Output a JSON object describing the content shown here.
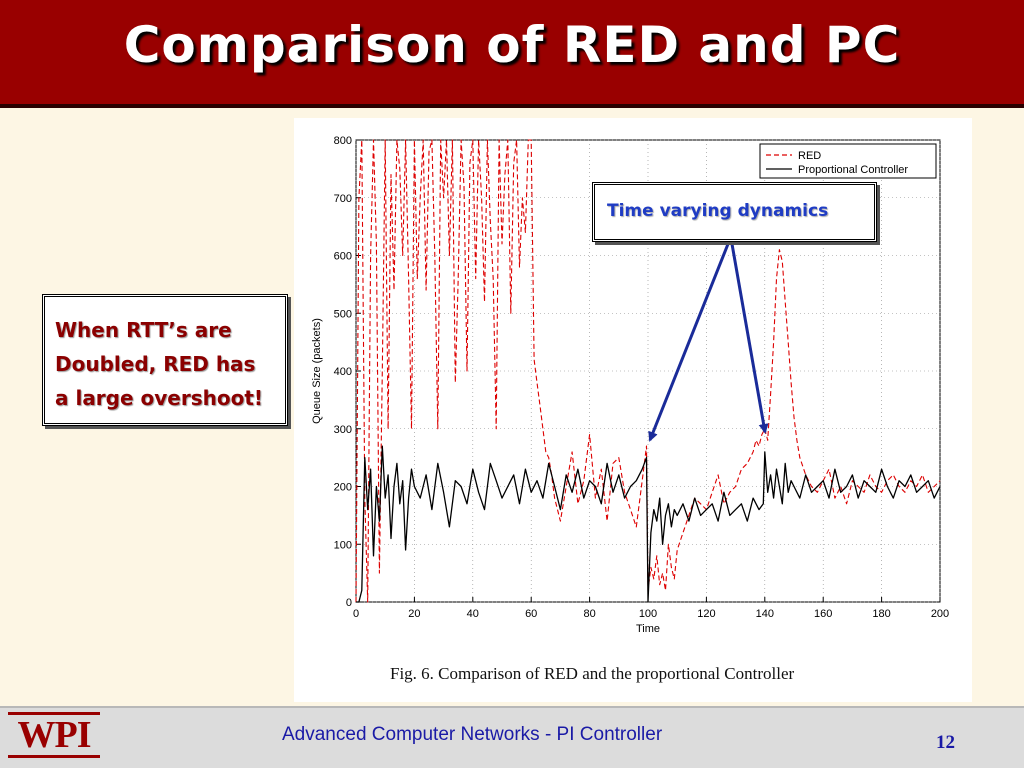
{
  "slide": {
    "title": "Comparison of RED and PC",
    "callout_left": [
      "When RTT’s are",
      "Doubled, RED has",
      "a large overshoot!"
    ],
    "callout_right": "Time varying dynamics",
    "caption": "Fig. 6.  Comparison of RED and the proportional Controller",
    "footer_text": "Advanced Computer Networks -  PI Controller",
    "page_number": "12",
    "logo_text": "WPI"
  },
  "colors": {
    "title_bg": "#990000",
    "title_text": "#ffffff",
    "callout_left_text": "#8b0000",
    "callout_right_text": "#1f3cc4",
    "red_series": "#dd0000",
    "pc_series": "#000000",
    "arrow": "#1a2b99"
  },
  "chart_data": {
    "type": "line",
    "xlabel": "Time",
    "ylabel": "Queue Size (packets)",
    "xlim": [
      0,
      200
    ],
    "ylim": [
      0,
      800
    ],
    "xticks": [
      0,
      20,
      40,
      60,
      80,
      100,
      120,
      140,
      160,
      180,
      200
    ],
    "yticks": [
      0,
      100,
      200,
      300,
      400,
      500,
      600,
      700,
      800
    ],
    "grid": "dotted",
    "legend_position": "top-right",
    "series": [
      {
        "name": "RED",
        "style": "dashed",
        "color": "#dd0000",
        "x": [
          0,
          1,
          2,
          3,
          4,
          5,
          6,
          7,
          8,
          9,
          10,
          11,
          12,
          13,
          14,
          15,
          16,
          17,
          18,
          19,
          20,
          21,
          22,
          23,
          24,
          25,
          26,
          27,
          28,
          29,
          30,
          31,
          32,
          33,
          34,
          35,
          36,
          37,
          38,
          39,
          40,
          41,
          42,
          43,
          44,
          45,
          46,
          47,
          48,
          49,
          50,
          51,
          52,
          53,
          54,
          55,
          56,
          57,
          58,
          59,
          60,
          61,
          62,
          63,
          64,
          65,
          66,
          67,
          68,
          69,
          70,
          72,
          74,
          76,
          78,
          80,
          82,
          84,
          86,
          88,
          90,
          92,
          94,
          96,
          98,
          99.5,
          100,
          101,
          102,
          103,
          104,
          105,
          106,
          107,
          108,
          109,
          110,
          112,
          114,
          116,
          118,
          120,
          122,
          124,
          126,
          128,
          130,
          132,
          134,
          136,
          137,
          138,
          139,
          140,
          141,
          142,
          143,
          144,
          145,
          146,
          147,
          148,
          149,
          150,
          151,
          152,
          154,
          156,
          158,
          160,
          162,
          164,
          166,
          168,
          170,
          172,
          174,
          176,
          178,
          180,
          182,
          184,
          186,
          188,
          190,
          192,
          194,
          196,
          198,
          200
        ],
        "y": [
          0,
          700,
          800,
          180,
          0,
          600,
          800,
          620,
          50,
          400,
          800,
          300,
          740,
          540,
          800,
          750,
          600,
          800,
          560,
          300,
          800,
          560,
          700,
          800,
          540,
          780,
          800,
          600,
          300,
          800,
          700,
          800,
          600,
          800,
          380,
          560,
          800,
          720,
          400,
          760,
          800,
          560,
          800,
          700,
          520,
          800,
          660,
          560,
          300,
          800,
          620,
          740,
          800,
          500,
          760,
          800,
          580,
          700,
          640,
          800,
          800,
          420,
          380,
          340,
          300,
          260,
          250,
          220,
          180,
          160,
          140,
          200,
          260,
          170,
          210,
          290,
          180,
          230,
          140,
          240,
          250,
          190,
          160,
          130,
          210,
          270,
          20,
          60,
          40,
          80,
          30,
          50,
          20,
          100,
          60,
          40,
          90,
          120,
          150,
          180,
          170,
          160,
          190,
          220,
          170,
          190,
          200,
          230,
          240,
          260,
          280,
          270,
          290,
          300,
          280,
          360,
          450,
          560,
          610,
          590,
          520,
          450,
          380,
          320,
          280,
          250,
          220,
          200,
          190,
          210,
          230,
          180,
          200,
          170,
          210,
          200,
          190,
          220,
          200,
          190,
          210,
          220,
          200,
          190,
          210,
          200,
          220,
          190,
          200,
          210
        ]
      },
      {
        "name": "Proportional Controller",
        "style": "solid",
        "color": "#000000",
        "x": [
          0,
          1,
          2,
          3,
          4,
          5,
          6,
          7,
          8,
          9,
          10,
          11,
          12,
          13,
          14,
          15,
          16,
          17,
          18,
          19,
          20,
          22,
          24,
          26,
          28,
          30,
          32,
          34,
          36,
          38,
          40,
          42,
          44,
          46,
          48,
          50,
          52,
          54,
          56,
          58,
          60,
          62,
          64,
          66,
          68,
          70,
          72,
          74,
          76,
          78,
          80,
          82,
          84,
          86,
          88,
          90,
          92,
          94,
          96,
          98,
          99.5,
          100,
          101,
          102,
          103,
          104,
          105,
          106,
          107,
          108,
          109,
          110,
          112,
          114,
          116,
          118,
          120,
          122,
          124,
          126,
          128,
          130,
          132,
          134,
          136,
          138,
          139.5,
          140,
          141,
          142,
          143,
          144,
          145,
          146,
          147,
          148,
          149,
          150,
          152,
          154,
          156,
          158,
          160,
          162,
          164,
          166,
          168,
          170,
          172,
          174,
          176,
          178,
          180,
          182,
          184,
          186,
          188,
          190,
          192,
          194,
          196,
          198,
          200
        ],
        "y": [
          0,
          0,
          20,
          250,
          160,
          230,
          80,
          200,
          140,
          270,
          180,
          220,
          110,
          200,
          240,
          170,
          210,
          90,
          180,
          230,
          200,
          180,
          220,
          160,
          240,
          190,
          130,
          210,
          200,
          170,
          230,
          190,
          160,
          240,
          210,
          180,
          200,
          220,
          170,
          230,
          190,
          210,
          180,
          240,
          200,
          160,
          220,
          190,
          230,
          180,
          210,
          200,
          170,
          240,
          190,
          220,
          180,
          200,
          210,
          230,
          250,
          0,
          120,
          160,
          140,
          180,
          100,
          150,
          170,
          130,
          160,
          150,
          170,
          140,
          180,
          150,
          160,
          170,
          140,
          190,
          150,
          160,
          170,
          140,
          180,
          160,
          170,
          260,
          190,
          220,
          180,
          230,
          200,
          170,
          240,
          190,
          210,
          200,
          180,
          220,
          190,
          200,
          210,
          180,
          230,
          190,
          200,
          220,
          180,
          210,
          200,
          190,
          230,
          200,
          180,
          210,
          200,
          220,
          190,
          200,
          210,
          180,
          200
        ]
      }
    ]
  }
}
